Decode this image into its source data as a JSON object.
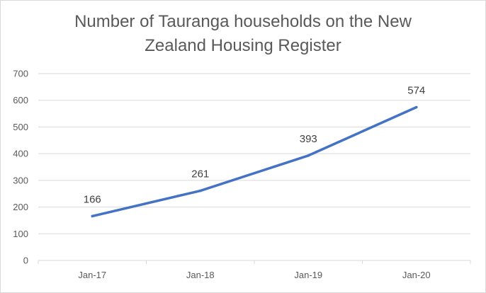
{
  "chart_data": {
    "type": "line",
    "title_lines": [
      "Number of Tauranga households on the New",
      "Zealand Housing Register"
    ],
    "categories": [
      "Jan-17",
      "Jan-18",
      "Jan-19",
      "Jan-20"
    ],
    "series": [
      {
        "values": [
          166,
          261,
          393,
          574
        ],
        "color": "#4472c4"
      }
    ],
    "data_labels": [
      "166",
      "261",
      "393",
      "574"
    ],
    "yticks": [
      "0",
      "100",
      "200",
      "300",
      "400",
      "500",
      "600",
      "700"
    ],
    "ylim": [
      0,
      700
    ],
    "ystep": 100,
    "grid": true,
    "legend": "none",
    "colors": {
      "line": "#4472c4",
      "grid": "#d9d9d9",
      "axis_text": "#595959",
      "title": "#595959"
    }
  }
}
